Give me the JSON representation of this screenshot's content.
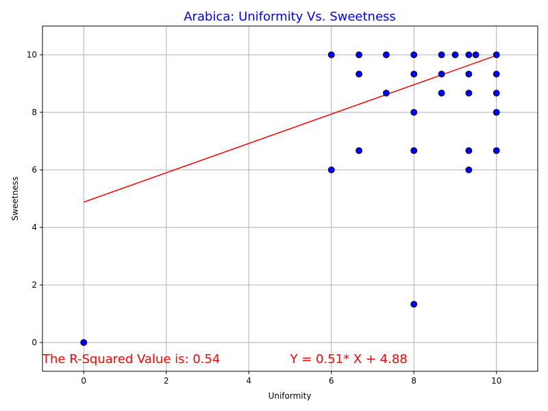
{
  "chart_data": {
    "type": "scatter",
    "title": "Arabica: Uniformity Vs. Sweetness",
    "xlabel": "Uniformity",
    "ylabel": "Sweetness",
    "xlim": [
      -1,
      11
    ],
    "ylim": [
      -1,
      11
    ],
    "xticks": [
      0,
      2,
      4,
      6,
      8,
      10
    ],
    "yticks": [
      0,
      2,
      4,
      6,
      8,
      10
    ],
    "grid": true,
    "colors": {
      "title": "#0000ff",
      "point_fill": "#0000ff",
      "point_edge": "#000000",
      "fit_line": "#ff0000",
      "annotation": "#ff0000",
      "grid": "#b0b0b0"
    },
    "points": [
      {
        "x": 0,
        "y": 0
      },
      {
        "x": 6,
        "y": 10
      },
      {
        "x": 6,
        "y": 6
      },
      {
        "x": 6.67,
        "y": 10
      },
      {
        "x": 6.67,
        "y": 9.33
      },
      {
        "x": 6.67,
        "y": 6.67
      },
      {
        "x": 7.33,
        "y": 10
      },
      {
        "x": 7.33,
        "y": 8.67
      },
      {
        "x": 8,
        "y": 10
      },
      {
        "x": 8,
        "y": 9.33
      },
      {
        "x": 8,
        "y": 8
      },
      {
        "x": 8,
        "y": 6.67
      },
      {
        "x": 8,
        "y": 1.33
      },
      {
        "x": 8.67,
        "y": 10
      },
      {
        "x": 8.67,
        "y": 9.33
      },
      {
        "x": 8.67,
        "y": 8.67
      },
      {
        "x": 9,
        "y": 10
      },
      {
        "x": 9.33,
        "y": 10
      },
      {
        "x": 9.33,
        "y": 9.33
      },
      {
        "x": 9.33,
        "y": 8.67
      },
      {
        "x": 9.33,
        "y": 6.67
      },
      {
        "x": 9.33,
        "y": 6
      },
      {
        "x": 9.5,
        "y": 10
      },
      {
        "x": 10,
        "y": 10
      },
      {
        "x": 10,
        "y": 9.33
      },
      {
        "x": 10,
        "y": 8.67
      },
      {
        "x": 10,
        "y": 8
      },
      {
        "x": 10,
        "y": 6.67
      }
    ],
    "fit_line": {
      "slope": 0.51,
      "intercept": 4.88,
      "x_start": 0,
      "x_end": 10
    },
    "annotations": {
      "r_squared": "The R-Squared Value is: 0.54",
      "equation": "Y = 0.51* X + 4.88"
    }
  }
}
